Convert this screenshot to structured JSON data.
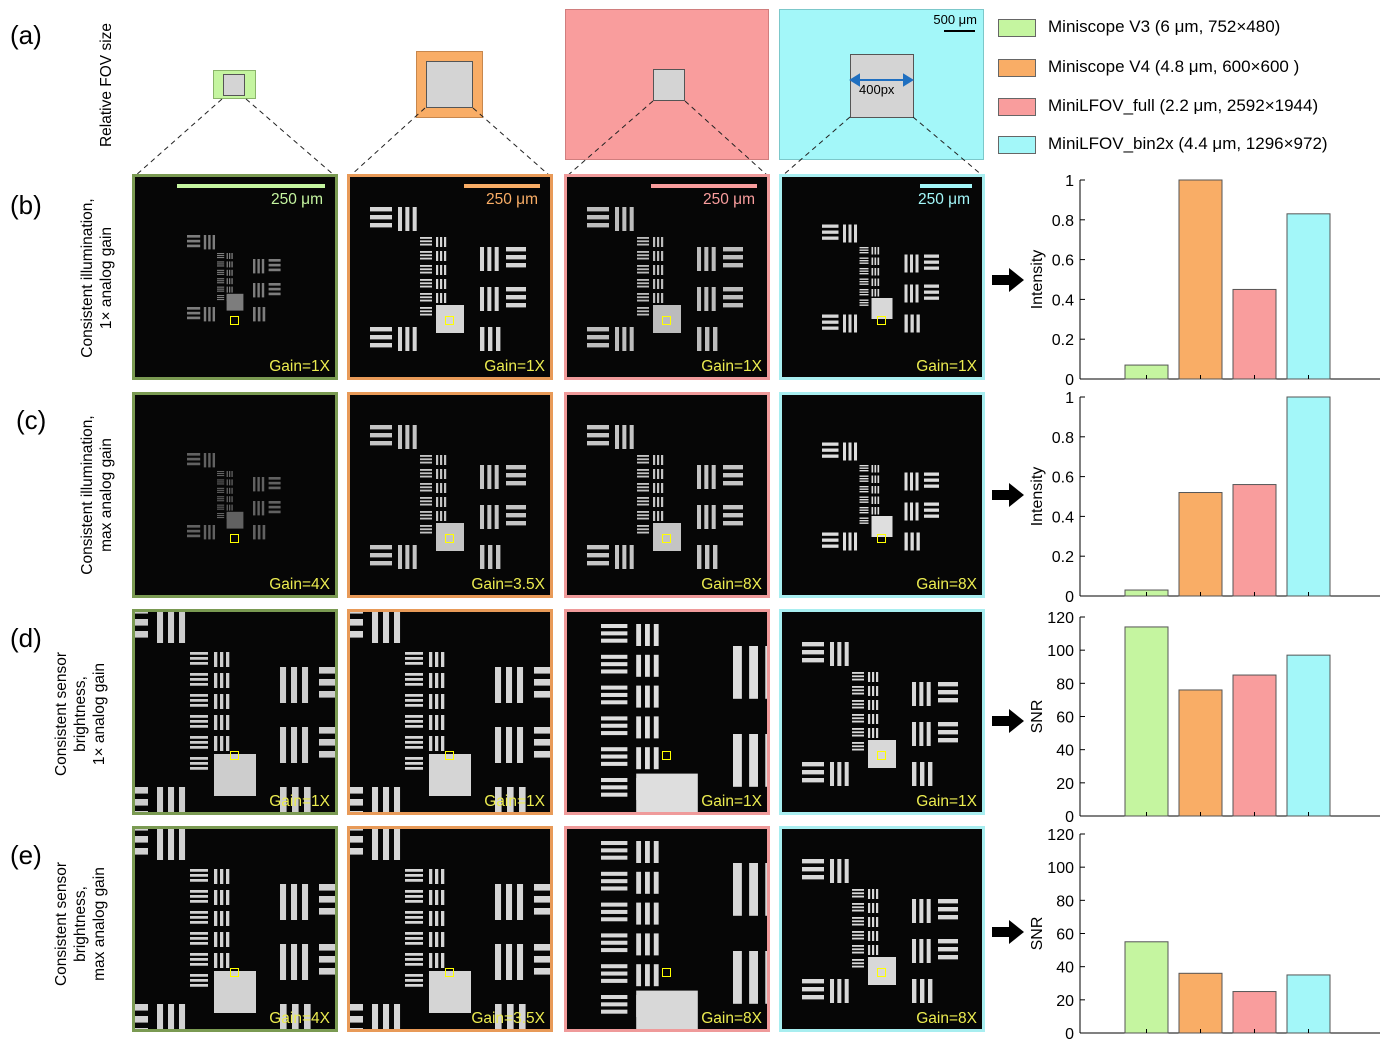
{
  "row_labels": [
    {
      "tag": "(a)",
      "desc": [
        "Relative FOV size"
      ]
    },
    {
      "tag": "(b)",
      "desc": [
        "Consistent illumination,",
        "1×  analog gain"
      ]
    },
    {
      "tag": "(c)",
      "desc": [
        "Consistent illumination,",
        "max  analog gain"
      ]
    },
    {
      "tag": "(d)",
      "desc": [
        "Consistent sensor",
        "brightness,",
        "1×  analog gain"
      ]
    },
    {
      "tag": "(e)",
      "desc": [
        "Consistent sensor",
        "brightness,",
        "max  analog gain"
      ]
    }
  ],
  "fov": {
    "scale_label": "500 μm",
    "px_label": "400px"
  },
  "legend": [
    {
      "label": "Miniscope V3 (6 μm, 752×480)",
      "color": "#c5f5a0"
    },
    {
      "label": "Miniscope V4 (4.8 μm, 600×600 )",
      "color": "#f9ad66"
    },
    {
      "label": "MiniLFOV_full (2.2 μm, 2592×1944)",
      "color": "#f99d9d"
    },
    {
      "label": "MiniLFOV_bin2x (4.4 μm, 1296×972)",
      "color": "#a3f7f9"
    }
  ],
  "panel_border_colors": [
    "#7a9a52",
    "#e89a58",
    "#ef9a9a",
    "#a8eef0"
  ],
  "scalebar_colors": [
    "#c5f5a0",
    "#f9ad66",
    "#f99d9d",
    "#a3f7f9"
  ],
  "scale_text": "250 μm",
  "gains": [
    [
      "Gain=1X",
      "Gain=1X",
      "Gain=1X",
      "Gain=1X"
    ],
    [
      "Gain=4X",
      "Gain=3.5X",
      "Gain=8X",
      "Gain=8X"
    ],
    [
      "Gain=1X",
      "Gain=1X",
      "Gain=1X",
      "Gain=1X"
    ],
    [
      "Gain=4X",
      "Gain=3.5X",
      "Gain=8X",
      "Gain=8X"
    ]
  ],
  "chart_data": [
    {
      "type": "bar",
      "row": "b",
      "categories": [
        "Miniscope V3",
        "Miniscope V4",
        "MiniLFOV_full",
        "MiniLFOV_bin2x"
      ],
      "values": [
        0.07,
        1.0,
        0.45,
        0.83
      ],
      "ylabel": "Intensity",
      "ylim": [
        0,
        1
      ],
      "yticks": [
        "0",
        "0.2",
        "0.4",
        "0.6",
        "0.8",
        "1"
      ],
      "colors": [
        "#c5f5a0",
        "#f9ad66",
        "#f99d9d",
        "#a3f7f9"
      ]
    },
    {
      "type": "bar",
      "row": "c",
      "categories": [
        "Miniscope V3",
        "Miniscope V4",
        "MiniLFOV_full",
        "MiniLFOV_bin2x"
      ],
      "values": [
        0.03,
        0.52,
        0.56,
        1.0
      ],
      "ylabel": "Intensity",
      "ylim": [
        0,
        1
      ],
      "yticks": [
        "0",
        "0.2",
        "0.4",
        "0.6",
        "0.8",
        "1"
      ],
      "colors": [
        "#c5f5a0",
        "#f9ad66",
        "#f99d9d",
        "#a3f7f9"
      ]
    },
    {
      "type": "bar",
      "row": "d",
      "categories": [
        "Miniscope V3",
        "Miniscope V4",
        "MiniLFOV_full",
        "MiniLFOV_bin2x"
      ],
      "values": [
        114,
        76,
        85,
        97
      ],
      "ylabel": "SNR",
      "ylim": [
        0,
        120
      ],
      "yticks": [
        "0",
        "20",
        "40",
        "60",
        "80",
        "100",
        "120"
      ],
      "colors": [
        "#c5f5a0",
        "#f9ad66",
        "#f99d9d",
        "#a3f7f9"
      ]
    },
    {
      "type": "bar",
      "row": "e",
      "categories": [
        "Miniscope V3",
        "Miniscope V4",
        "MiniLFOV_full",
        "MiniLFOV_bin2x"
      ],
      "values": [
        55,
        36,
        25,
        35
      ],
      "ylabel": "SNR",
      "ylim": [
        0,
        120
      ],
      "yticks": [
        "0",
        "20",
        "40",
        "60",
        "80",
        "100",
        "120"
      ],
      "colors": [
        "#c5f5a0",
        "#f9ad66",
        "#f99d9d",
        "#a3f7f9"
      ]
    }
  ]
}
